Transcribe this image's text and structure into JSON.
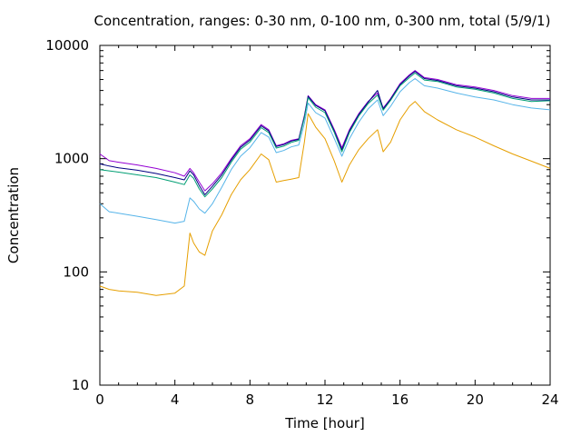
{
  "chart_data": {
    "type": "line",
    "title": "Concentration, ranges: 0-30 nm, 0-100 nm, 0-300 nm, total (5/9/1)",
    "xlabel": "Time [hour]",
    "ylabel": "Concentration",
    "xlim": [
      0,
      24
    ],
    "ylim": [
      10,
      10000
    ],
    "yscale": "log",
    "grid": false,
    "legend": "none",
    "x_ticks": [
      "0",
      "4",
      "8",
      "12",
      "16",
      "20",
      "24"
    ],
    "y_ticks": [
      "10",
      "100",
      "1000",
      "10000"
    ],
    "x": [
      0,
      0.5,
      1,
      2,
      3,
      4,
      4.5,
      4.8,
      5,
      5.3,
      5.6,
      6,
      6.5,
      7,
      7.5,
      8,
      8.6,
      9,
      9.4,
      9.8,
      10.2,
      10.6,
      10.9,
      11.1,
      11.5,
      12,
      12.5,
      12.9,
      13.3,
      13.8,
      14.3,
      14.8,
      15.1,
      15.5,
      16,
      16.5,
      16.8,
      17.3,
      18,
      19,
      20,
      21,
      22,
      23,
      24
    ],
    "series": [
      {
        "color": "#9400d3",
        "values": [
          1100,
          960,
          930,
          880,
          820,
          750,
          700,
          820,
          750,
          620,
          520,
          600,
          750,
          1000,
          1300,
          1500,
          2000,
          1800,
          1300,
          1350,
          1450,
          1500,
          2400,
          3600,
          3000,
          2700,
          1800,
          1250,
          1800,
          2500,
          3200,
          3800,
          2800,
          3400,
          4600,
          5500,
          6000,
          5200,
          5000,
          4500,
          4300,
          4000,
          3600,
          3400,
          3400
        ]
      },
      {
        "color": "#000080",
        "values": [
          900,
          860,
          830,
          790,
          740,
          680,
          650,
          780,
          720,
          580,
          480,
          570,
          720,
          970,
          1260,
          1460,
          1950,
          1760,
          1280,
          1330,
          1430,
          1480,
          2350,
          3550,
          2950,
          2650,
          1750,
          1200,
          1760,
          2450,
          3150,
          4000,
          2750,
          3350,
          4500,
          5400,
          5900,
          5100,
          4900,
          4400,
          4200,
          3900,
          3500,
          3300,
          3300
        ]
      },
      {
        "color": "#009e73",
        "values": [
          800,
          780,
          760,
          720,
          680,
          620,
          590,
          720,
          670,
          540,
          460,
          540,
          680,
          930,
          1210,
          1400,
          1880,
          1700,
          1240,
          1290,
          1390,
          1450,
          2300,
          3450,
          2850,
          2550,
          1700,
          1150,
          1700,
          2380,
          3060,
          3650,
          2680,
          3270,
          4400,
          5200,
          5700,
          4950,
          4800,
          4300,
          4100,
          3800,
          3400,
          3200,
          3250
        ]
      },
      {
        "color": "#56b4e9",
        "values": [
          400,
          340,
          330,
          310,
          290,
          270,
          280,
          450,
          420,
          360,
          330,
          400,
          560,
          800,
          1050,
          1250,
          1700,
          1550,
          1130,
          1180,
          1270,
          1320,
          2050,
          3100,
          2550,
          2280,
          1500,
          1050,
          1500,
          2100,
          2750,
          3300,
          2400,
          2900,
          3900,
          4700,
          5100,
          4400,
          4200,
          3800,
          3500,
          3300,
          3000,
          2800,
          2700
        ]
      },
      {
        "color": "#e69f00",
        "values": [
          75,
          70,
          68,
          66,
          62,
          65,
          75,
          220,
          180,
          150,
          140,
          230,
          320,
          480,
          650,
          800,
          1100,
          980,
          620,
          640,
          660,
          680,
          1400,
          2500,
          1900,
          1500,
          950,
          620,
          880,
          1200,
          1500,
          1800,
          1150,
          1400,
          2200,
          2900,
          3200,
          2600,
          2200,
          1800,
          1550,
          1300,
          1100,
          950,
          820
        ]
      }
    ]
  }
}
